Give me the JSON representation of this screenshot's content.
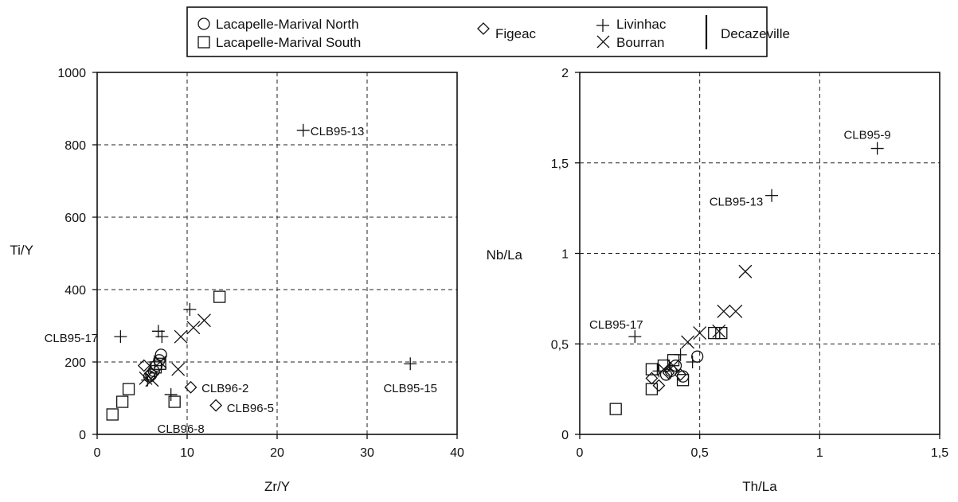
{
  "legend": {
    "entries": [
      {
        "symbol": "circle",
        "label": "Lacapelle-Marival North"
      },
      {
        "symbol": "square",
        "label": "Lacapelle-Marival South"
      },
      {
        "symbol": "diamond",
        "label": "Figeac"
      },
      {
        "symbol": "plus",
        "label": "Livinhac"
      },
      {
        "symbol": "cross",
        "label": "Bourran"
      }
    ],
    "group_label": "Decazeville"
  },
  "chart_data": [
    {
      "type": "scatter",
      "xlabel": "Zr/Y",
      "ylabel": "Ti/Y",
      "xlim": [
        0,
        40
      ],
      "ylim": [
        0,
        1000
      ],
      "xticks": [
        "0",
        "10",
        "20",
        "30",
        "40"
      ],
      "yticks": [
        "0",
        "200",
        "400",
        "600",
        "800",
        "1000"
      ],
      "xtick_values": [
        0,
        10,
        20,
        30,
        40
      ],
      "ytick_values": [
        0,
        200,
        400,
        600,
        800,
        1000
      ],
      "grid": true,
      "series": [
        {
          "name": "Lacapelle-Marival North",
          "symbol": "circle",
          "points": [
            [
              6.0,
              165
            ],
            [
              6.3,
              175
            ],
            [
              6.6,
              190
            ],
            [
              6.9,
              205
            ],
            [
              7.1,
              220
            ],
            [
              5.8,
              160
            ]
          ]
        },
        {
          "name": "Lacapelle-Marival South",
          "symbol": "square",
          "points": [
            [
              1.7,
              55
            ],
            [
              2.8,
              90
            ],
            [
              3.5,
              125
            ],
            [
              8.6,
              90
            ],
            [
              13.6,
              380
            ],
            [
              6.5,
              185
            ],
            [
              7.0,
              195
            ]
          ]
        },
        {
          "name": "Figeac",
          "symbol": "diamond",
          "points": [
            [
              5.2,
              190
            ],
            [
              10.4,
              130
            ],
            [
              13.2,
              80
            ],
            [
              6.0,
              170
            ]
          ]
        },
        {
          "name": "Livinhac",
          "symbol": "plus",
          "points": [
            [
              2.6,
              270
            ],
            [
              6.8,
              285
            ],
            [
              7.2,
              270
            ],
            [
              10.3,
              345
            ],
            [
              8.2,
              110
            ],
            [
              22.9,
              840
            ],
            [
              34.8,
              195
            ],
            [
              5.6,
              150
            ]
          ]
        },
        {
          "name": "Bourran",
          "symbol": "cross",
          "points": [
            [
              5.4,
              155
            ],
            [
              6.1,
              150
            ],
            [
              9.0,
              180
            ],
            [
              9.3,
              270
            ],
            [
              10.7,
              295
            ],
            [
              11.9,
              315
            ],
            [
              7.0,
              200
            ]
          ]
        }
      ],
      "annotations": [
        {
          "text": "CLB95-13",
          "x": 23.7,
          "y": 840,
          "anchor": "start"
        },
        {
          "text": "CLB95-17",
          "x": 0.1,
          "y": 268,
          "anchor": "end"
        },
        {
          "text": "CLB96-2",
          "x": 11.6,
          "y": 130,
          "anchor": "start"
        },
        {
          "text": "CLB96-5",
          "x": 14.4,
          "y": 75,
          "anchor": "start"
        },
        {
          "text": "CLB96-8",
          "x": 9.3,
          "y": 18,
          "anchor": "middle"
        },
        {
          "text": "CLB95-15",
          "x": 34.8,
          "y": 130,
          "anchor": "middle"
        }
      ]
    },
    {
      "type": "scatter",
      "xlabel": "Th/La",
      "ylabel": "Nb/La",
      "xlim": [
        0,
        1.5
      ],
      "ylim": [
        0,
        2
      ],
      "xticks": [
        "0",
        "0,5",
        "1",
        "1,5"
      ],
      "yticks": [
        "0",
        "0,5",
        "1",
        "1,5",
        "2"
      ],
      "xtick_values": [
        0,
        0.5,
        1,
        1.5
      ],
      "ytick_values": [
        0,
        0.5,
        1,
        1.5,
        2
      ],
      "grid": true,
      "series": [
        {
          "name": "Lacapelle-Marival North",
          "symbol": "circle",
          "points": [
            [
              0.36,
              0.33
            ],
            [
              0.38,
              0.35
            ],
            [
              0.4,
              0.38
            ],
            [
              0.49,
              0.43
            ],
            [
              0.43,
              0.32
            ]
          ]
        },
        {
          "name": "Lacapelle-Marival South",
          "symbol": "square",
          "points": [
            [
              0.15,
              0.14
            ],
            [
              0.3,
              0.25
            ],
            [
              0.3,
              0.36
            ],
            [
              0.39,
              0.41
            ],
            [
              0.43,
              0.3
            ],
            [
              0.56,
              0.56
            ],
            [
              0.59,
              0.56
            ],
            [
              0.35,
              0.38
            ]
          ]
        },
        {
          "name": "Figeac",
          "symbol": "diamond",
          "points": [
            [
              0.3,
              0.31
            ],
            [
              0.33,
              0.27
            ],
            [
              0.37,
              0.34
            ],
            [
              0.42,
              0.33
            ]
          ]
        },
        {
          "name": "Livinhac",
          "symbol": "plus",
          "points": [
            [
              0.23,
              0.54
            ],
            [
              0.42,
              0.44
            ],
            [
              0.47,
              0.4
            ],
            [
              0.8,
              1.32
            ],
            [
              1.24,
              1.58
            ],
            [
              0.33,
              0.35
            ]
          ]
        },
        {
          "name": "Bourran",
          "symbol": "cross",
          "points": [
            [
              0.35,
              0.36
            ],
            [
              0.45,
              0.51
            ],
            [
              0.5,
              0.56
            ],
            [
              0.58,
              0.57
            ],
            [
              0.6,
              0.68
            ],
            [
              0.65,
              0.68
            ],
            [
              0.69,
              0.9
            ],
            [
              0.39,
              0.38
            ]
          ]
        }
      ],
      "annotations": [
        {
          "text": "CLB95-9",
          "x": 1.1,
          "y": 1.66,
          "anchor": "start"
        },
        {
          "text": "CLB95-13",
          "x": 0.54,
          "y": 1.29,
          "anchor": "start"
        },
        {
          "text": "CLB95-17",
          "x": 0.04,
          "y": 0.61,
          "anchor": "start"
        }
      ]
    }
  ]
}
